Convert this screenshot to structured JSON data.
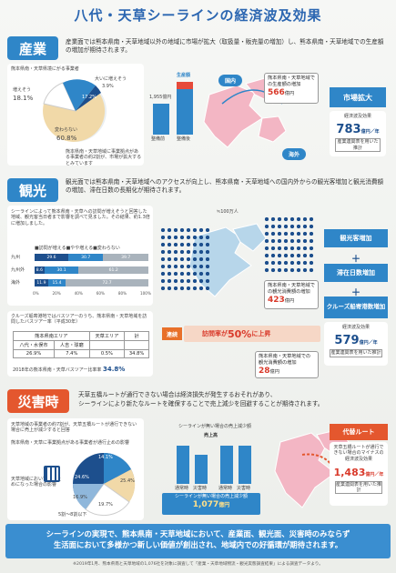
{
  "title": "八代・天草シーラインの経済波及効果",
  "industry": {
    "head": "産業",
    "text": "産業面では熊本県南・天草地域以外の地域に市場が拡大（取扱量・販売量の増加）し、熊本県南・天草地域での生産額の増加が期待されます。",
    "pie_title": "熊本県南・天草県境にがる事業者",
    "pie_top": "大いに増えそう",
    "pie_top_pct": "3.9%",
    "pie_left": "増えそう",
    "pie_left_pct": "18.1%",
    "pie_right_pct": "17.2%",
    "pie_bottom": "変わらない",
    "pie_bottom_pct": "60.8%",
    "pie_note": "熊本県南・天草地域に事業拠点がある事業者の約2割が、市場が拡大するとみています",
    "prod_label": "生産額",
    "prod_val": "1,955億円",
    "bar1": "整備前",
    "bar2": "整備後",
    "domestic": "国内",
    "overseas": "海外",
    "increase_title": "熊本県南・天草地域での生産額の増加",
    "increase_val": "566",
    "increase_unit": "億円",
    "market": "市場拡大",
    "effect_label": "経済波及効果",
    "effect_val": "783",
    "effect_unit": "億円／年",
    "effect_note": "産業連関表を用いた推計"
  },
  "tourism": {
    "head": "観光",
    "text": "観光面では熊本県南・天草地域へのアクセスが向上し、熊本県南・天草地域への国内外からの観光客増加と観光消費額の増加、滞在日数の長期化が期待されます。",
    "left_text": "シーラインによって熊本県南・天草への訪問が増えそうと回答した地域、観光客当日者まで影響を調べて見ました。その結果、約1.3倍に増加しました。",
    "bar_title": "■訪問が増える■やや増える■変わらない",
    "rows": [
      {
        "label": "九州",
        "a": "29.6",
        "b": "30.7",
        "c": "39.7"
      },
      {
        "label": "九州外",
        "a": "8.6",
        "b": "30.1",
        "c": "61.2"
      },
      {
        "label": "海外",
        "a": "11.9",
        "b": "15.4",
        "c": "72.7"
      }
    ],
    "axis": [
      "0%",
      "20%",
      "40%",
      "60%",
      "80%",
      "100%"
    ],
    "count_label": "≒100万人",
    "cruise_text": "クルーズ船寄港地ではバスツアーのうち、熊本県南・天草地域を訪問したバスツアー率（平成30年）",
    "tbl_head": [
      "熊本県南エリア",
      "",
      "天草エリア",
      "計"
    ],
    "tbl_row1": [
      "八代・水俣市",
      "人吉・球磨",
      "",
      ""
    ],
    "tbl_row2": [
      "26.9%",
      "7.4%",
      "0.5%",
      "34.8%"
    ],
    "tbl_note": "2018年の熊本県南・天草バスツアー比率率",
    "tbl_note_val": "34.8%",
    "visit_label": "訪問率が",
    "visit_val": "50%",
    "visit_suffix": "に上昇",
    "renzoku": "連続",
    "spend_title": "熊本県南・天草地域での観光消費額の増加",
    "spend_val": "423",
    "spend_unit": "億円",
    "stay_title": "熊本県南・天草地域での観光消費額の増加",
    "stay_val": "28",
    "stay_unit": "億円",
    "right_btns": [
      "観光客増加",
      "滞在日数増加",
      "クルーズ船寄港数増加"
    ],
    "effect_label": "経済波及効果",
    "effect_val": "579",
    "effect_unit": "億円／年",
    "effect_note": "産業連関表を用いた推計"
  },
  "disaster": {
    "head": "災害時",
    "text1": "天草五橋ルートが通行できない場合は経済損失が発生するおそれがあり、",
    "text2": "シーラインにより新たなルートを確保することで売上減少を回避することが期待されます。",
    "box_text": "天草地域の事業者の約7割が、天草五橋ルートが通行できない場合に売上が減少すると回答",
    "pie_title": "熊本県南・天草に事業拠点がある事業者が通行止めの影響",
    "pie_labels": [
      "14.1%",
      "24.6%",
      "25.4%",
      "19.7%",
      "16.9%"
    ],
    "pie_note": "天草地域において通行止めになった場合の影響",
    "pie_bottom": "5割～8割以下",
    "sales_label": "売上高",
    "sales_title": "シーラインが無い場合の売上減少額",
    "bars": [
      "通常時",
      "災害時",
      "通常時",
      "災害時"
    ],
    "saved_label": "シーラインが無い場合の売上減少額",
    "saved_val": "1,077",
    "saved_unit": "億円",
    "alt_route": "代替ルート",
    "alt_text": "天草五橋ルートが通行できない場合のマイナスの経済波及効果",
    "alt_val": "1,483",
    "alt_unit": "億円／年",
    "alt_note": "産業連関表を用いた推計"
  },
  "footer": {
    "line1": "シーラインの実現で、熊本県南・天草地域において、産業面、観光面、災害時のみならず",
    "line2": "生活面において多様かつ新しい価値が創出され、地域内での好循環が期待されます。",
    "note": "※2019年1月、熊本県南と天草地域の1,076社を対象に調査して「産業・天草地域物流・観光実態調査結果」による調査データより。"
  },
  "colors": {
    "blue": "#2f86c8",
    "teal": "#2ea7a4",
    "red": "#d93a2b",
    "navy": "#1d4f8d"
  }
}
